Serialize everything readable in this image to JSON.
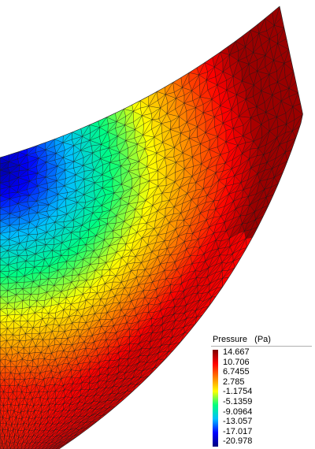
{
  "legend": {
    "title": "Pressure   (Pa)",
    "ticks": [
      "14.667",
      "10.706",
      "6.7455",
      "2.785",
      "-1.1754",
      "-5.1359",
      "-9.0964",
      "-13.057",
      "-17.017",
      "-20.978"
    ],
    "range": [
      -20.978,
      14.667
    ],
    "colormap": [
      "#00007f",
      "#0000ff",
      "#00bfff",
      "#00ff7f",
      "#ffff00",
      "#ff7f00",
      "#ff0000",
      "#7f0000"
    ]
  },
  "mesh": {
    "type": "triangulated-surface",
    "field": "Pressure"
  }
}
